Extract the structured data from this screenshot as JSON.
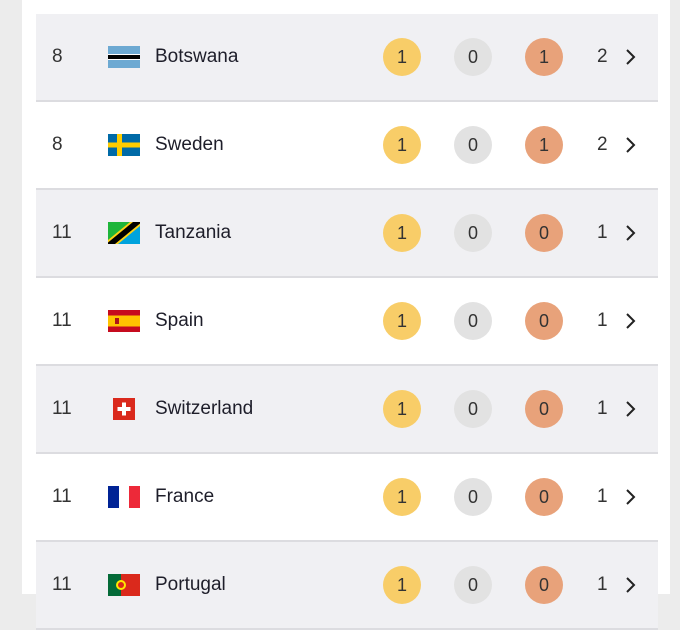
{
  "rows": [
    {
      "rank": "8",
      "country": "Botswana",
      "flag_icon": "botswana-flag-icon",
      "gold": "1",
      "silver": "0",
      "bronze": "1",
      "total": "2"
    },
    {
      "rank": "8",
      "country": "Sweden",
      "flag_icon": "sweden-flag-icon",
      "gold": "1",
      "silver": "0",
      "bronze": "1",
      "total": "2"
    },
    {
      "rank": "11",
      "country": "Tanzania",
      "flag_icon": "tanzania-flag-icon",
      "gold": "1",
      "silver": "0",
      "bronze": "0",
      "total": "1"
    },
    {
      "rank": "11",
      "country": "Spain",
      "flag_icon": "spain-flag-icon",
      "gold": "1",
      "silver": "0",
      "bronze": "0",
      "total": "1"
    },
    {
      "rank": "11",
      "country": "Switzerland",
      "flag_icon": "switzerland-flag-icon",
      "gold": "1",
      "silver": "0",
      "bronze": "0",
      "total": "1"
    },
    {
      "rank": "11",
      "country": "France",
      "flag_icon": "france-flag-icon",
      "gold": "1",
      "silver": "0",
      "bronze": "0",
      "total": "1"
    },
    {
      "rank": "11",
      "country": "Portugal",
      "flag_icon": "portugal-flag-icon",
      "gold": "1",
      "silver": "0",
      "bronze": "0",
      "total": "1"
    }
  ],
  "colors": {
    "gold": "#f8cd68",
    "silver": "#e2e2e2",
    "bronze": "#e8a27a",
    "row_alt": "#f0f0f3"
  }
}
